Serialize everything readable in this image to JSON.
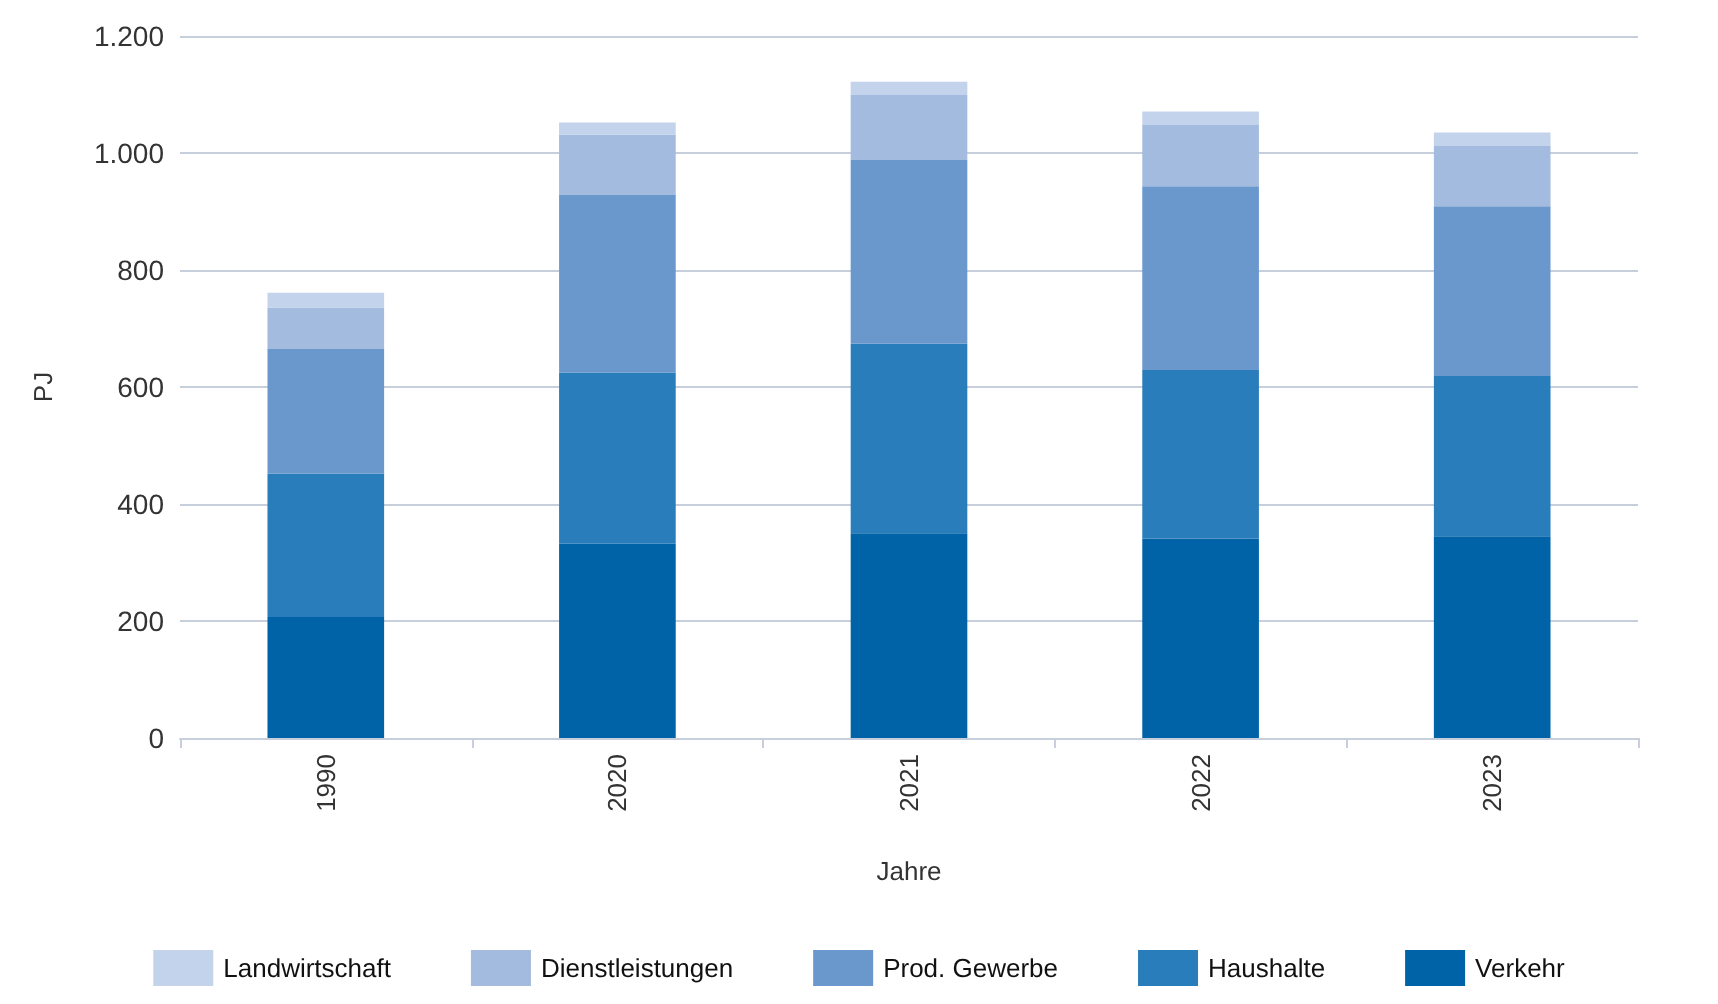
{
  "chart_data": {
    "type": "bar",
    "stacked": true,
    "xlabel": "Jahre",
    "ylabel": "PJ",
    "categories": [
      "1990",
      "2020",
      "2021",
      "2022",
      "2023"
    ],
    "series": [
      {
        "name": "Verkehr",
        "color": "#0063a8",
        "values": [
          207,
          332,
          350,
          341,
          345
        ]
      },
      {
        "name": "Haushalte",
        "color": "#2a7dbb",
        "values": [
          245,
          293,
          324,
          288,
          274
        ]
      },
      {
        "name": "Prod. Gewerbe",
        "color": "#6a98cc",
        "values": [
          213,
          303,
          314,
          314,
          290
        ]
      },
      {
        "name": "Dienstleistungen",
        "color": "#a2bbdf",
        "values": [
          71,
          103,
          111,
          105,
          103
        ]
      },
      {
        "name": "Landwirtschaft",
        "color": "#c3d3ec",
        "values": [
          25,
          21,
          23,
          23,
          23
        ]
      }
    ],
    "ylim": [
      0,
      1200
    ],
    "yticks": [
      0,
      200,
      400,
      600,
      800,
      {
        "value": 1000,
        "label": "1.000"
      },
      {
        "value": 1200,
        "label": "1.200"
      }
    ],
    "grid": "y",
    "legend": "bottom"
  }
}
